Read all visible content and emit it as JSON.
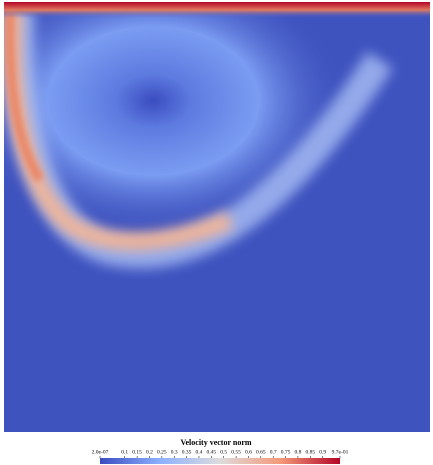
{
  "chart_data": {
    "type": "heatmap",
    "title": "Velocity vector norm",
    "clim": [
      2e-07,
      0.97
    ],
    "cticks": [
      {
        "value": 2e-07,
        "label": "2.0e-07"
      },
      0.1,
      0.15,
      0.2,
      0.25,
      0.3,
      0.35,
      0.4,
      0.45,
      0.5,
      0.55,
      0.6,
      0.65,
      0.7,
      0.75,
      0.8,
      0.85,
      0.9,
      {
        "value": 0.97,
        "label": "9.7e-01"
      }
    ],
    "colormap": [
      "#3b4cc0",
      "#8db0fe",
      "#dddcdc",
      "#f49a7b",
      "#b40426"
    ]
  }
}
